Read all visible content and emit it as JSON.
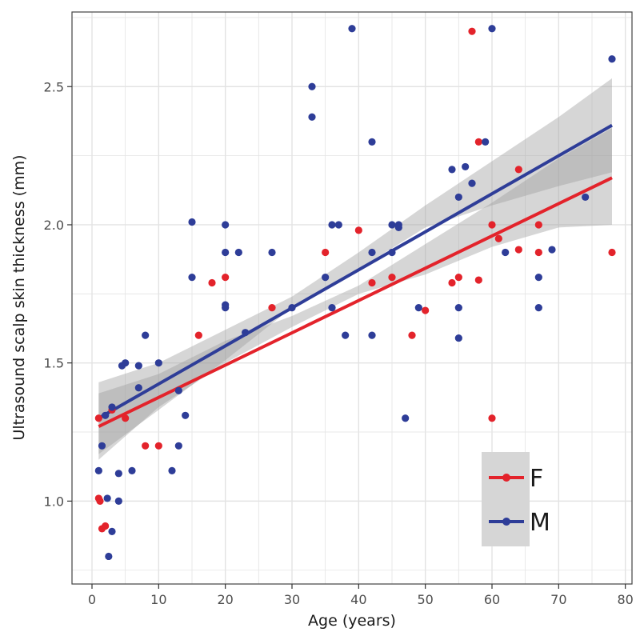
{
  "colors": {
    "female": "#e3232b",
    "male": "#2e3d98",
    "ribbon": "#9e9e9e",
    "grid": "#e3e3e3",
    "panel_border": "#444444",
    "legend_bg": "#d6d6d6"
  },
  "chart_data": {
    "type": "scatter",
    "title": "",
    "xlabel": "Age (years)",
    "ylabel": "Ultrasound scalp skin thickness (mm)",
    "xlim": [
      -3,
      81
    ],
    "ylim": [
      0.7,
      2.77
    ],
    "xticks": [
      0,
      10,
      20,
      30,
      40,
      50,
      60,
      70,
      80
    ],
    "yticks": [
      1.0,
      1.5,
      2.0,
      2.5
    ],
    "ytick_labels": [
      "1.0",
      "1.5",
      "2.0",
      "2.5"
    ],
    "grid": true,
    "legend_position": "bottom-right",
    "series": [
      {
        "name": "F",
        "color": "#e3232b",
        "fit_line": [
          [
            1,
            1.27
          ],
          [
            78,
            2.17
          ]
        ],
        "ci_lower": [
          [
            1,
            1.15
          ],
          [
            10,
            1.34
          ],
          [
            20,
            1.5
          ],
          [
            30,
            1.63
          ],
          [
            40,
            1.75
          ],
          [
            50,
            1.82
          ],
          [
            60,
            1.92
          ],
          [
            70,
            1.99
          ],
          [
            78,
            2.0
          ]
        ],
        "ci_upper": [
          [
            1,
            1.39
          ],
          [
            10,
            1.46
          ],
          [
            20,
            1.58
          ],
          [
            30,
            1.67
          ],
          [
            40,
            1.78
          ],
          [
            50,
            1.93
          ],
          [
            60,
            2.08
          ],
          [
            70,
            2.24
          ],
          [
            78,
            2.35
          ]
        ],
        "points": [
          [
            1,
            1.3
          ],
          [
            1,
            1.01
          ],
          [
            1.2,
            1.0
          ],
          [
            1.5,
            0.9
          ],
          [
            2,
            0.91
          ],
          [
            3,
            1.33
          ],
          [
            5,
            1.3
          ],
          [
            8,
            1.2
          ],
          [
            10,
            1.2
          ],
          [
            16,
            1.6
          ],
          [
            18,
            1.79
          ],
          [
            20,
            1.81
          ],
          [
            27,
            1.7
          ],
          [
            35,
            1.9
          ],
          [
            40,
            1.98
          ],
          [
            42,
            1.79
          ],
          [
            45,
            1.81
          ],
          [
            48,
            1.6
          ],
          [
            50,
            1.69
          ],
          [
            54,
            1.79
          ],
          [
            55,
            1.81
          ],
          [
            57,
            2.7
          ],
          [
            58,
            2.3
          ],
          [
            58,
            1.8
          ],
          [
            60,
            2.0
          ],
          [
            60,
            1.3
          ],
          [
            61,
            1.95
          ],
          [
            64,
            2.2
          ],
          [
            64,
            1.91
          ],
          [
            67,
            2.0
          ],
          [
            67,
            1.9
          ],
          [
            78,
            1.9
          ]
        ]
      },
      {
        "name": "M",
        "color": "#2e3d98",
        "fit_line": [
          [
            1,
            1.3
          ],
          [
            78,
            2.36
          ]
        ],
        "ci_lower": [
          [
            1,
            1.17
          ],
          [
            10,
            1.33
          ],
          [
            20,
            1.51
          ],
          [
            30,
            1.7
          ],
          [
            40,
            1.84
          ],
          [
            50,
            1.99
          ],
          [
            60,
            2.07
          ],
          [
            70,
            2.14
          ],
          [
            78,
            2.19
          ]
        ],
        "ci_upper": [
          [
            1,
            1.43
          ],
          [
            10,
            1.5
          ],
          [
            20,
            1.62
          ],
          [
            30,
            1.74
          ],
          [
            40,
            1.9
          ],
          [
            50,
            2.07
          ],
          [
            60,
            2.23
          ],
          [
            70,
            2.39
          ],
          [
            78,
            2.53
          ]
        ],
        "points": [
          [
            1,
            1.11
          ],
          [
            1.5,
            1.2
          ],
          [
            2,
            1.31
          ],
          [
            2.3,
            1.01
          ],
          [
            2.5,
            0.8
          ],
          [
            3,
            0.89
          ],
          [
            3,
            1.34
          ],
          [
            4,
            1.1
          ],
          [
            4,
            1.0
          ],
          [
            4.5,
            1.49
          ],
          [
            5,
            1.5
          ],
          [
            6,
            1.11
          ],
          [
            7,
            1.41
          ],
          [
            7,
            1.49
          ],
          [
            8,
            1.6
          ],
          [
            10,
            1.5
          ],
          [
            12,
            1.11
          ],
          [
            13,
            1.4
          ],
          [
            13,
            1.2
          ],
          [
            14,
            1.31
          ],
          [
            15,
            2.01
          ],
          [
            15,
            1.81
          ],
          [
            20,
            2.0
          ],
          [
            20,
            1.9
          ],
          [
            20,
            1.71
          ],
          [
            20,
            1.7
          ],
          [
            22,
            1.9
          ],
          [
            23,
            1.61
          ],
          [
            27,
            1.9
          ],
          [
            30,
            1.7
          ],
          [
            33,
            2.5
          ],
          [
            33,
            2.39
          ],
          [
            35,
            1.81
          ],
          [
            36,
            2.0
          ],
          [
            36,
            1.7
          ],
          [
            37,
            2.0
          ],
          [
            38,
            1.6
          ],
          [
            39,
            2.71
          ],
          [
            42,
            2.3
          ],
          [
            42,
            1.9
          ],
          [
            42,
            1.6
          ],
          [
            45,
            2.0
          ],
          [
            45,
            1.9
          ],
          [
            46,
            2.0
          ],
          [
            46,
            1.99
          ],
          [
            47,
            1.3
          ],
          [
            49,
            1.7
          ],
          [
            54,
            2.2
          ],
          [
            55,
            2.1
          ],
          [
            55,
            1.7
          ],
          [
            55,
            1.59
          ],
          [
            56,
            2.21
          ],
          [
            57,
            2.15
          ],
          [
            59,
            2.3
          ],
          [
            60,
            2.71
          ],
          [
            62,
            1.9
          ],
          [
            67,
            1.81
          ],
          [
            67,
            1.7
          ],
          [
            69,
            1.91
          ],
          [
            74,
            2.1
          ],
          [
            78,
            2.6
          ]
        ]
      }
    ]
  }
}
